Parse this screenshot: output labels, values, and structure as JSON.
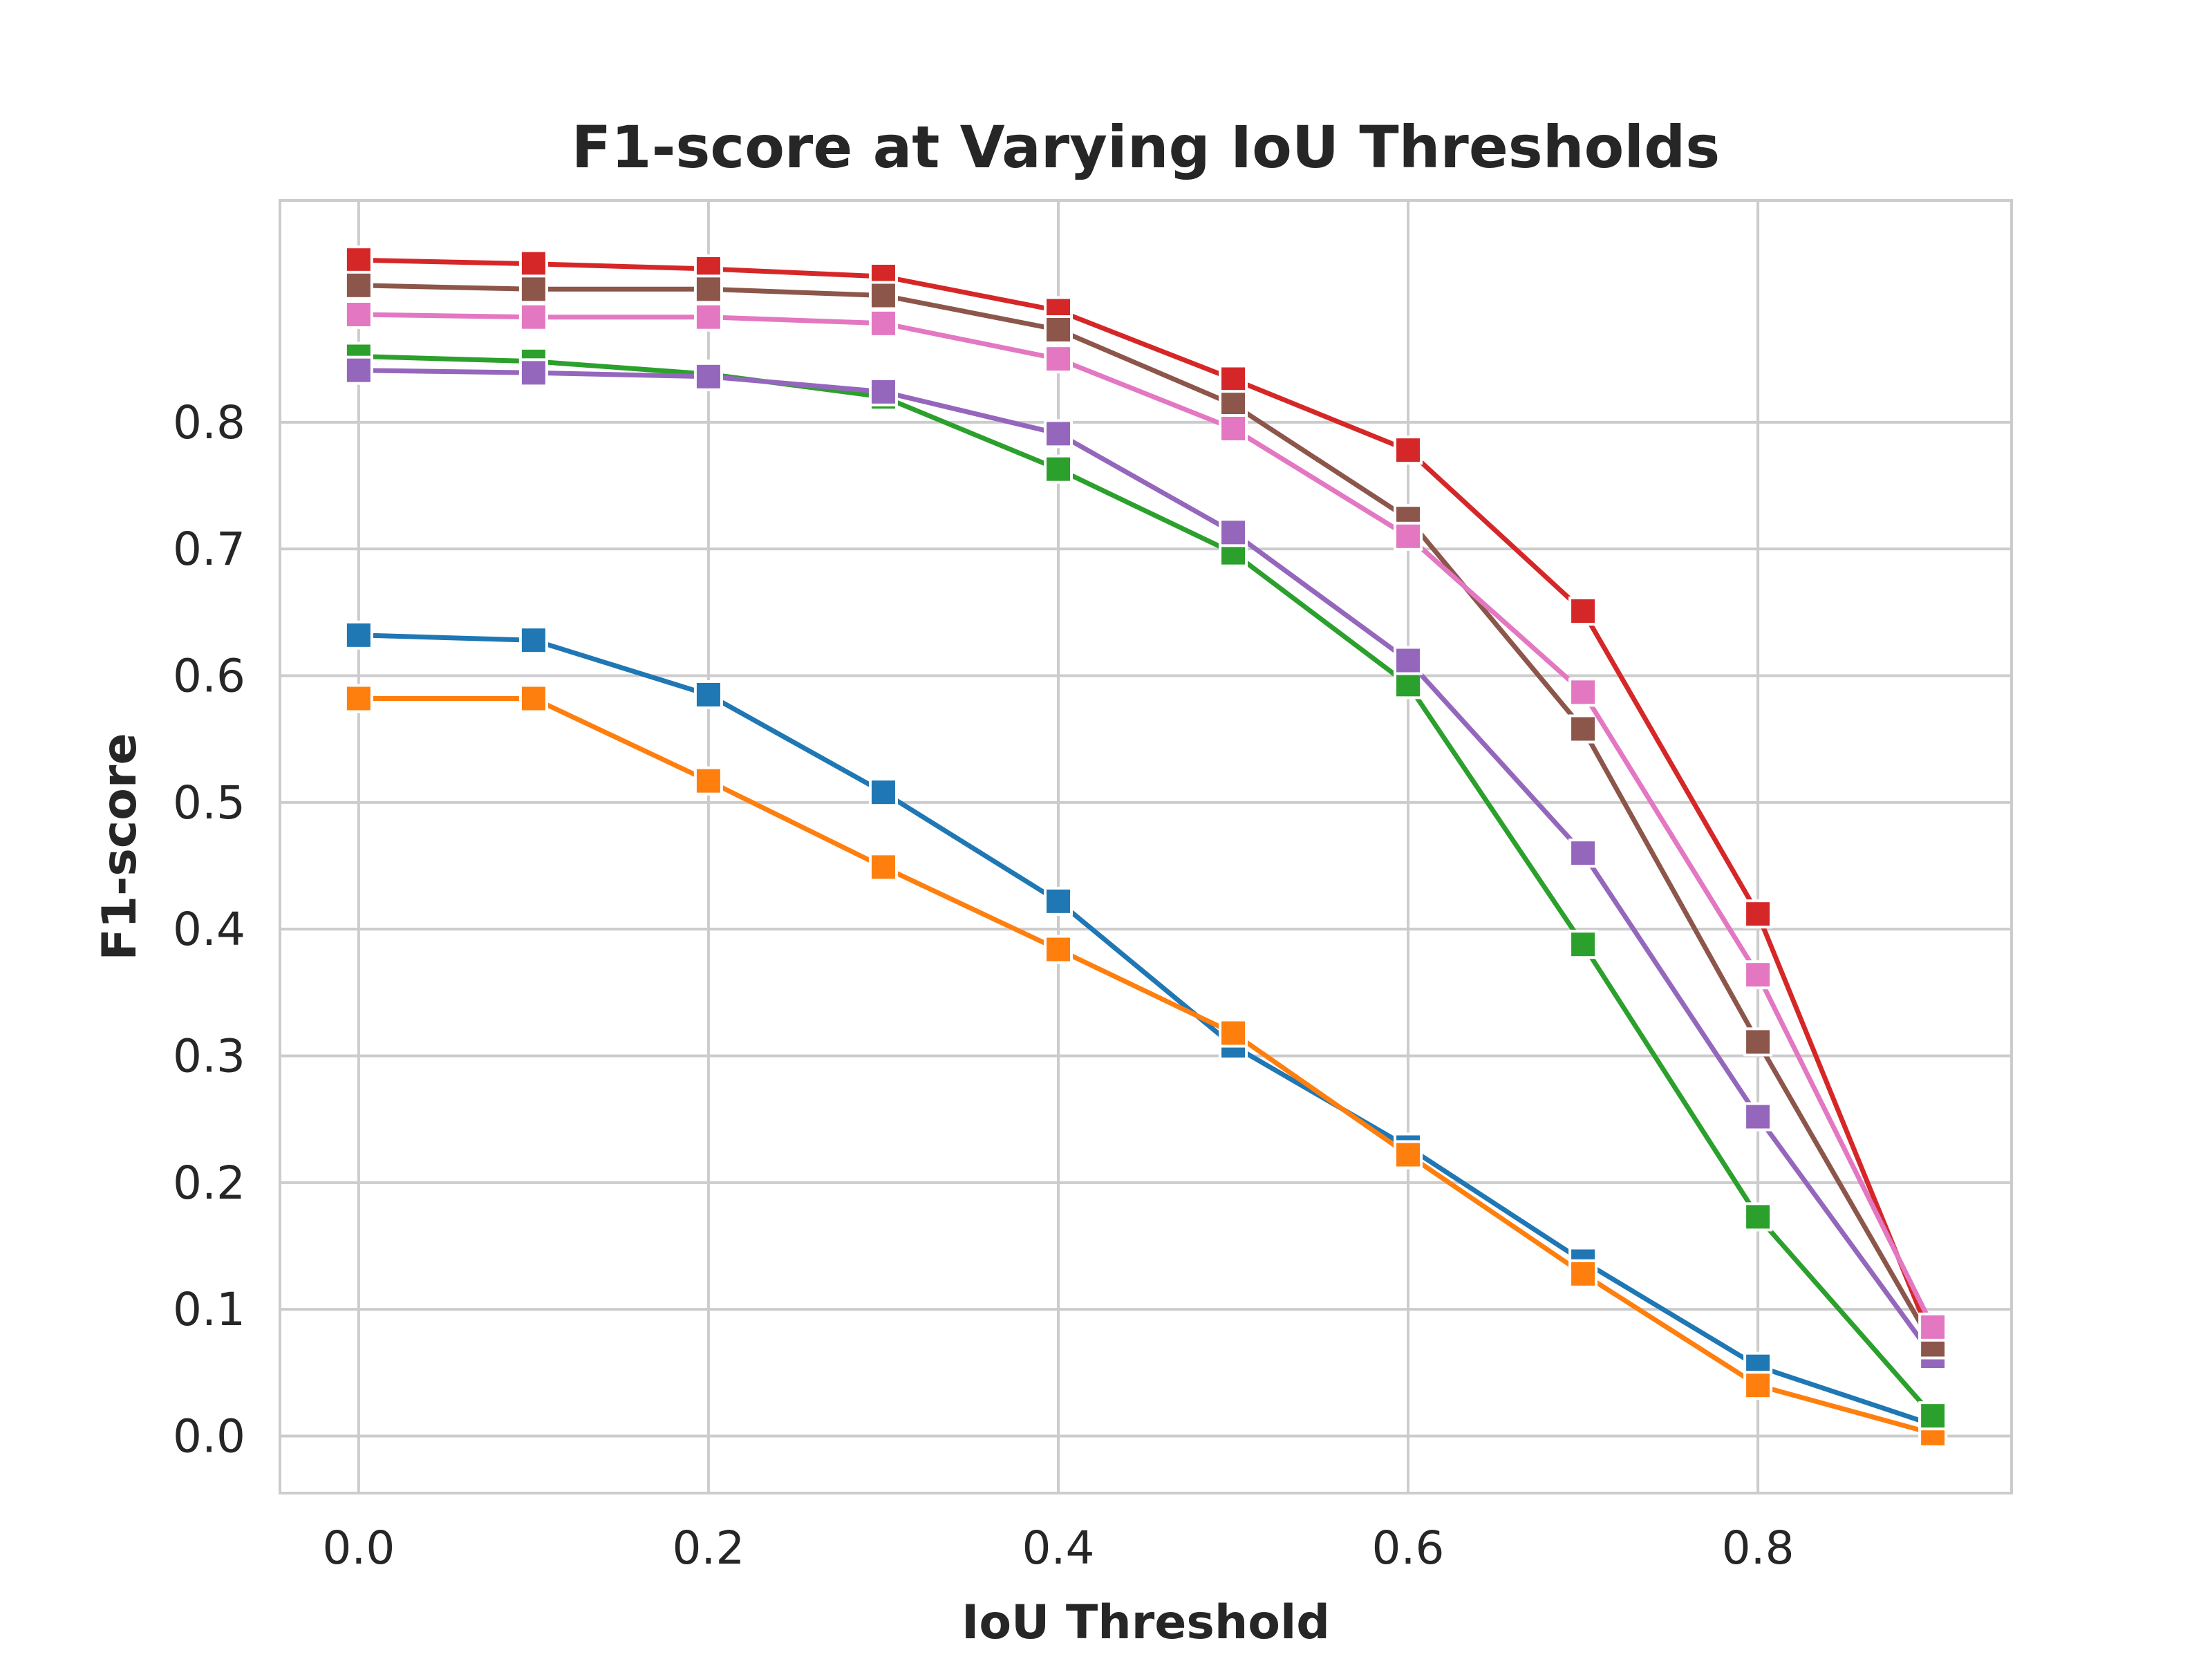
{
  "chart_data": {
    "type": "line",
    "title": "F1-score at Varying IoU Thresholds",
    "xlabel": "IoU Threshold",
    "ylabel": "F1-score",
    "xlim": [
      -0.045,
      0.945
    ],
    "ylim": [
      -0.045,
      0.975
    ],
    "xticks": [
      0.0,
      0.2,
      0.4,
      0.6,
      0.8
    ],
    "xtick_labels": [
      "0.0",
      "0.2",
      "0.4",
      "0.6",
      "0.8"
    ],
    "yticks": [
      0.0,
      0.1,
      0.2,
      0.3,
      0.4,
      0.5,
      0.6,
      0.7,
      0.8
    ],
    "ytick_labels": [
      "0.0",
      "0.1",
      "0.2",
      "0.3",
      "0.4",
      "0.5",
      "0.6",
      "0.7",
      "0.8"
    ],
    "grid": true,
    "legend": "none",
    "marker": "square",
    "x": [
      0.0,
      0.1,
      0.2,
      0.3,
      0.4,
      0.5,
      0.6,
      0.7,
      0.8,
      0.9
    ],
    "series": [
      {
        "color": "#1f77b4",
        "values": [
          0.632,
          0.628,
          0.585,
          0.508,
          0.422,
          0.308,
          0.228,
          0.138,
          0.055,
          0.009
        ]
      },
      {
        "color": "#ff7f0e",
        "values": [
          0.582,
          0.582,
          0.517,
          0.449,
          0.384,
          0.318,
          0.222,
          0.128,
          0.04,
          0.002
        ]
      },
      {
        "color": "#2ca02c",
        "values": [
          0.852,
          0.848,
          0.838,
          0.82,
          0.763,
          0.697,
          0.593,
          0.388,
          0.173,
          0.016
        ]
      },
      {
        "color": "#d62728",
        "values": [
          0.928,
          0.925,
          0.921,
          0.915,
          0.888,
          0.834,
          0.778,
          0.651,
          0.412,
          0.074
        ]
      },
      {
        "color": "#9467bd",
        "values": [
          0.841,
          0.839,
          0.836,
          0.824,
          0.791,
          0.713,
          0.612,
          0.46,
          0.252,
          0.063
        ]
      },
      {
        "color": "#8c564b",
        "values": [
          0.908,
          0.905,
          0.905,
          0.9,
          0.873,
          0.814,
          0.724,
          0.558,
          0.311,
          0.072
        ]
      },
      {
        "color": "#e377c2",
        "values": [
          0.885,
          0.883,
          0.883,
          0.878,
          0.85,
          0.795,
          0.71,
          0.587,
          0.364,
          0.086
        ]
      }
    ]
  }
}
